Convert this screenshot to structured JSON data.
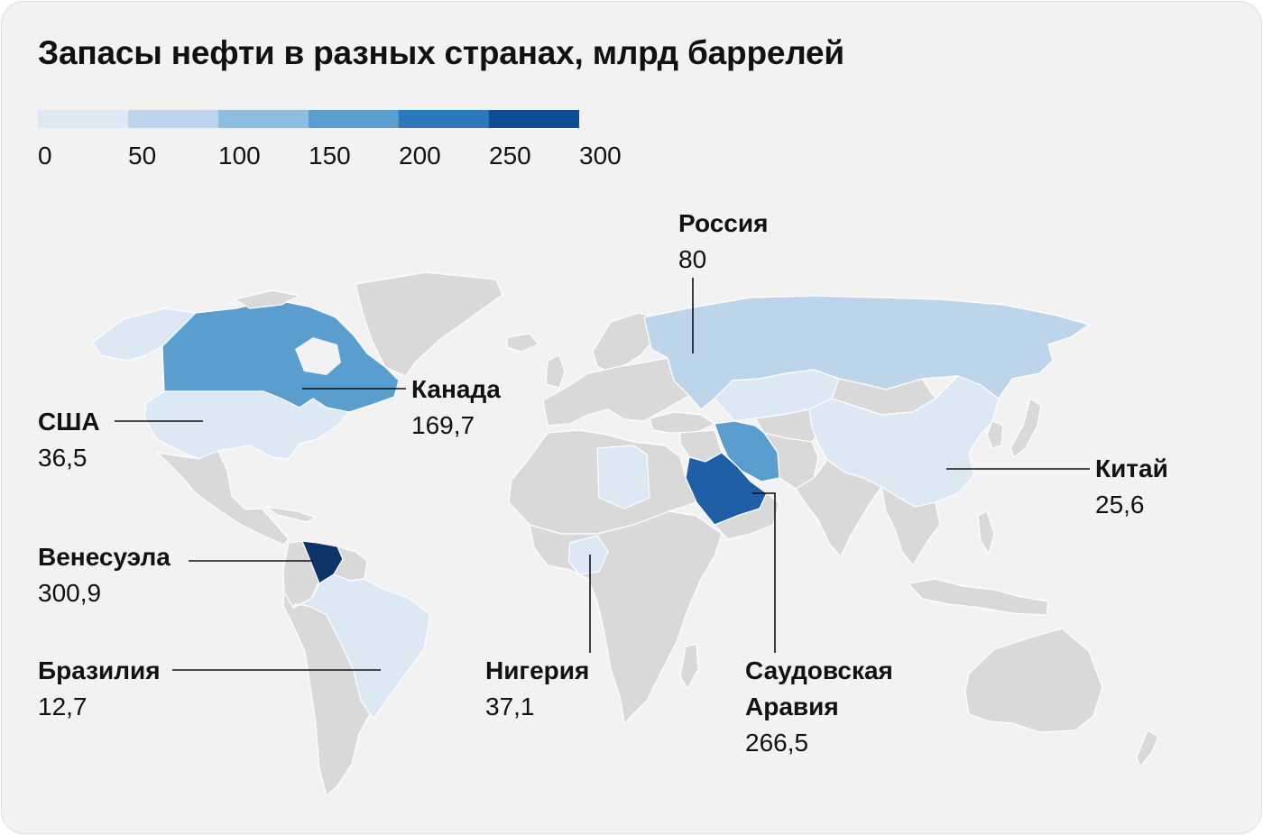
{
  "title": "Запасы нефти в разных странах, млрд баррелей",
  "legend": {
    "ticks": [
      "0",
      "50",
      "100",
      "150",
      "200",
      "250",
      "300"
    ],
    "colors": [
      "#dde8f5",
      "#bcd5ea",
      "#8ebedf",
      "#5a9dcf",
      "#2d77bd",
      "#0e4e96"
    ]
  },
  "base_color": "#d9d9d9",
  "countries": {
    "russia": {
      "name": "Россия",
      "value": "80",
      "color": "#bcd5ea"
    },
    "canada": {
      "name": "Канада",
      "value": "169,7",
      "color": "#5a9dcf"
    },
    "usa": {
      "name": "США",
      "value": "36,5",
      "color": "#dde8f5"
    },
    "venezuela": {
      "name": "Венесуэла",
      "value": "300,9",
      "color": "#0d3468"
    },
    "brazil": {
      "name": "Бразилия",
      "value": "12,7",
      "color": "#dde8f5"
    },
    "nigeria": {
      "name": "Нигерия",
      "value": "37,1",
      "color": "#dde8f5"
    },
    "saudi_arabia": {
      "name_line1": "Саудовская",
      "name_line2": "Аравия",
      "value": "266,5",
      "color": "#1f5fa8"
    },
    "china": {
      "name": "Китай",
      "value": "25,6",
      "color": "#dde8f5"
    }
  }
}
